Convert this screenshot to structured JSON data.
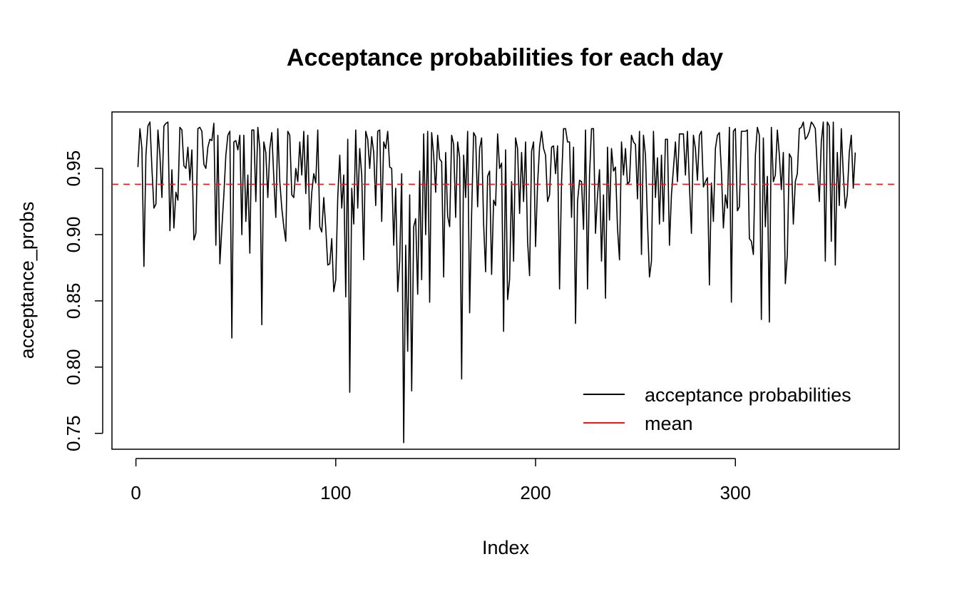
{
  "chart_data": {
    "type": "line",
    "title": "Acceptance probabilities for each day",
    "xlabel": "Index",
    "ylabel": "acceptance_probs",
    "xlim": [
      -12,
      382
    ],
    "ylim": [
      0.738,
      0.9926
    ],
    "x_ticks": [
      0,
      100,
      200,
      300
    ],
    "x_tick_labels": [
      "0",
      "100",
      "200",
      "300"
    ],
    "y_ticks": [
      0.75,
      0.8,
      0.85,
      0.9,
      0.95
    ],
    "y_tick_labels": [
      "0.75",
      "0.80",
      "0.85",
      "0.90",
      "0.95"
    ],
    "grid": false,
    "legend_position": "bottom-right",
    "legend": [
      {
        "label": "acceptance probabilities",
        "color": "#000000",
        "dash": "solid"
      },
      {
        "label": "mean",
        "color": "#e31a1c",
        "dash": "solid"
      }
    ],
    "series": [
      {
        "name": "acceptance probabilities",
        "color": "#000000",
        "x_start": 1,
        "values": [
          0.951,
          0.98,
          0.965,
          0.876,
          0.96,
          0.982,
          0.985,
          0.95,
          0.92,
          0.923,
          0.979,
          0.96,
          0.928,
          0.982,
          0.984,
          0.985,
          0.903,
          0.949,
          0.905,
          0.932,
          0.926,
          0.981,
          0.979,
          0.952,
          0.95,
          0.966,
          0.941,
          0.964,
          0.896,
          0.901,
          0.98,
          0.981,
          0.978,
          0.953,
          0.95,
          0.966,
          0.972,
          0.971,
          0.984,
          0.892,
          0.975,
          0.878,
          0.905,
          0.93,
          0.96,
          0.975,
          0.978,
          0.822,
          0.97,
          0.971,
          0.964,
          0.975,
          0.9,
          0.975,
          0.91,
          0.945,
          0.886,
          0.979,
          0.979,
          0.925,
          0.981,
          0.965,
          0.832,
          0.97,
          0.962,
          0.928,
          0.965,
          0.977,
          0.943,
          0.913,
          0.98,
          0.94,
          0.92,
          0.906,
          0.895,
          0.978,
          0.975,
          0.93,
          0.928,
          0.95,
          0.94,
          0.97,
          0.945,
          0.978,
          0.931,
          0.975,
          0.904,
          0.932,
          0.946,
          0.939,
          0.979,
          0.906,
          0.902,
          0.928,
          0.905,
          0.877,
          0.878,
          0.897,
          0.857,
          0.866,
          0.928,
          0.96,
          0.92,
          0.945,
          0.853,
          0.972,
          0.781,
          0.935,
          0.908,
          0.979,
          0.92,
          0.965,
          0.945,
          0.881,
          0.978,
          0.972,
          0.95,
          0.974,
          0.962,
          0.922,
          0.978,
          0.979,
          0.91,
          0.97,
          0.965,
          0.978,
          0.951,
          0.95,
          0.892,
          0.935,
          0.857,
          0.88,
          0.946,
          0.743,
          0.892,
          0.812,
          0.93,
          0.782,
          0.906,
          0.912,
          0.855,
          0.948,
          0.866,
          0.976,
          0.9,
          0.978,
          0.849,
          0.977,
          0.96,
          0.932,
          0.975,
          0.957,
          0.955,
          0.868,
          0.962,
          0.914,
          0.906,
          0.975,
          0.968,
          0.913,
          0.97,
          0.958,
          0.791,
          0.96,
          0.928,
          0.978,
          0.841,
          0.916,
          0.977,
          0.974,
          0.921,
          0.965,
          0.973,
          0.908,
          0.872,
          0.944,
          0.948,
          0.87,
          0.926,
          0.922,
          0.976,
          0.95,
          0.954,
          0.827,
          0.964,
          0.851,
          0.866,
          0.94,
          0.88,
          0.973,
          0.965,
          0.916,
          0.962,
          0.925,
          0.97,
          0.895,
          0.869,
          0.963,
          0.97,
          0.891,
          0.938,
          0.966,
          0.978,
          0.965,
          0.96,
          0.925,
          0.93,
          0.966,
          0.967,
          0.946,
          0.967,
          0.859,
          0.94,
          0.98,
          0.98,
          0.97,
          0.97,
          0.913,
          0.966,
          0.833,
          0.925,
          0.941,
          0.94,
          0.904,
          0.979,
          0.859,
          0.945,
          0.98,
          0.98,
          0.901,
          0.93,
          0.949,
          0.88,
          0.93,
          0.852,
          0.966,
          0.911,
          0.965,
          0.948,
          0.951,
          0.905,
          0.881,
          0.97,
          0.945,
          0.965,
          0.938,
          0.94,
          0.975,
          0.97,
          0.968,
          0.927,
          0.978,
          0.885,
          0.975,
          0.96,
          0.91,
          0.868,
          0.88,
          0.978,
          0.928,
          0.958,
          0.908,
          0.96,
          0.91,
          0.972,
          0.972,
          0.892,
          0.93,
          0.95,
          0.97,
          0.94,
          0.976,
          0.976,
          0.976,
          0.945,
          0.978,
          0.937,
          0.901,
          0.975,
          0.965,
          0.941,
          0.975,
          0.978,
          0.936,
          0.94,
          0.943,
          0.862,
          0.939,
          0.91,
          0.965,
          0.975,
          0.977,
          0.948,
          0.905,
          0.93,
          0.92,
          0.981,
          0.849,
          0.978,
          0.98,
          0.918,
          0.921,
          0.978,
          0.978,
          0.978,
          0.979,
          0.897,
          0.895,
          0.885,
          0.96,
          0.981,
          0.975,
          0.836,
          0.973,
          0.906,
          0.944,
          0.834,
          0.981,
          0.94,
          0.945,
          0.979,
          0.96,
          0.934,
          0.962,
          0.863,
          0.885,
          0.961,
          0.958,
          0.908,
          0.94,
          0.946,
          0.98,
          0.981,
          0.985,
          0.972,
          0.974,
          0.978,
          0.985,
          0.983,
          0.98,
          0.95,
          0.925,
          0.97,
          0.985,
          0.88,
          0.985,
          0.982,
          0.895,
          0.985,
          0.877,
          0.962,
          0.922,
          0.98,
          0.946,
          0.92,
          0.93,
          0.962,
          0.975,
          0.935,
          0.962
        ]
      },
      {
        "name": "mean",
        "color": "#e31a1c",
        "value": 0.938
      }
    ]
  }
}
